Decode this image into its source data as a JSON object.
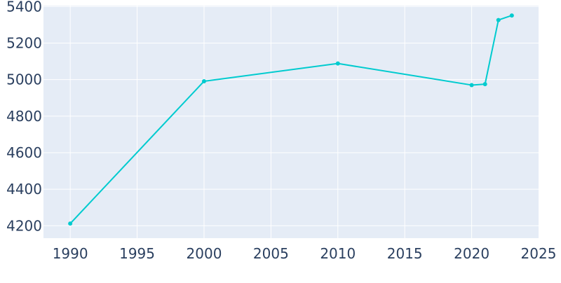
{
  "chart_data": {
    "type": "line",
    "title": "",
    "xlabel": "",
    "ylabel": "",
    "x": [
      1990,
      2000,
      2010,
      2020,
      2021,
      2022,
      2023
    ],
    "series": [
      {
        "values": [
          4212,
          4991,
          5088,
          4970,
          4975,
          5326,
          5351
        ]
      }
    ],
    "xlim": [
      1988,
      2025
    ],
    "ylim": [
      4132,
      5405
    ],
    "x_ticks": [
      "1990",
      "1995",
      "2000",
      "2005",
      "2010",
      "2015",
      "2020",
      "2025"
    ],
    "y_ticks": [
      "4200",
      "4400",
      "4600",
      "4800",
      "5000",
      "5200",
      "5400"
    ],
    "grid": true,
    "legend": "none",
    "colors": {
      "plot_background": "#e5ecf6",
      "grid": "#ffffff",
      "line": "#00cbcf",
      "tick_text": "#2a3f5f"
    }
  }
}
